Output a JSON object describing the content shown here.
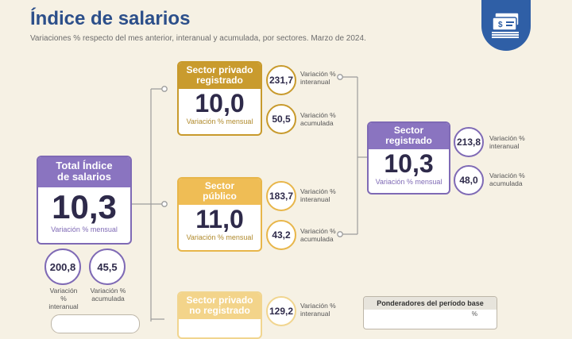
{
  "header": {
    "title": "Índice de salarios",
    "subtitle": "Variaciones % respecto del mes anterior, interanual y acumulada, por sectores. Marzo de 2024."
  },
  "total": {
    "title_line1": "Total Índice",
    "title_line2": "de salarios",
    "value": "10,3",
    "caption": "Variación % mensual",
    "interanual": "200,8",
    "acumulada": "45,5",
    "interanual_label_line1": "Variación %",
    "interanual_label_line2": "interanual",
    "acumulada_label_line1": "Variación %",
    "acumulada_label_line2": "acumulada"
  },
  "privado": {
    "title_line1": "Sector privado",
    "title_line2": "registrado",
    "value": "10,0",
    "caption": "Variación % mensual",
    "interanual": "231,7",
    "acumulada": "50,5"
  },
  "publico": {
    "title_line1": "Sector",
    "title_line2": "público",
    "value": "11,0",
    "caption": "Variación % mensual",
    "interanual": "183,7",
    "acumulada": "43,2"
  },
  "no_registrado": {
    "title_line1": "Sector privado",
    "title_line2": "no registrado",
    "interanual": "129,2"
  },
  "registrado": {
    "title_line1": "Sector",
    "title_line2": "registrado",
    "value": "10,3",
    "caption": "Variación % mensual",
    "interanual": "213,8",
    "acumulada": "48,0"
  },
  "labels": {
    "interanual_line1": "Variación %",
    "interanual_line2": "interanual",
    "acumulada_line1": "Variación %",
    "acumulada_line2": "acumulada"
  },
  "ponderadores": {
    "title": "Ponderadores del período base",
    "unit": "%"
  },
  "colors": {
    "title_blue": "#2c4f8a",
    "purple": "#8a74c0",
    "gold": "#c99b2e",
    "amber": "#efbd55",
    "pale_gold": "#f3d48a"
  },
  "icons": {
    "badge": "money-bills-icon"
  }
}
